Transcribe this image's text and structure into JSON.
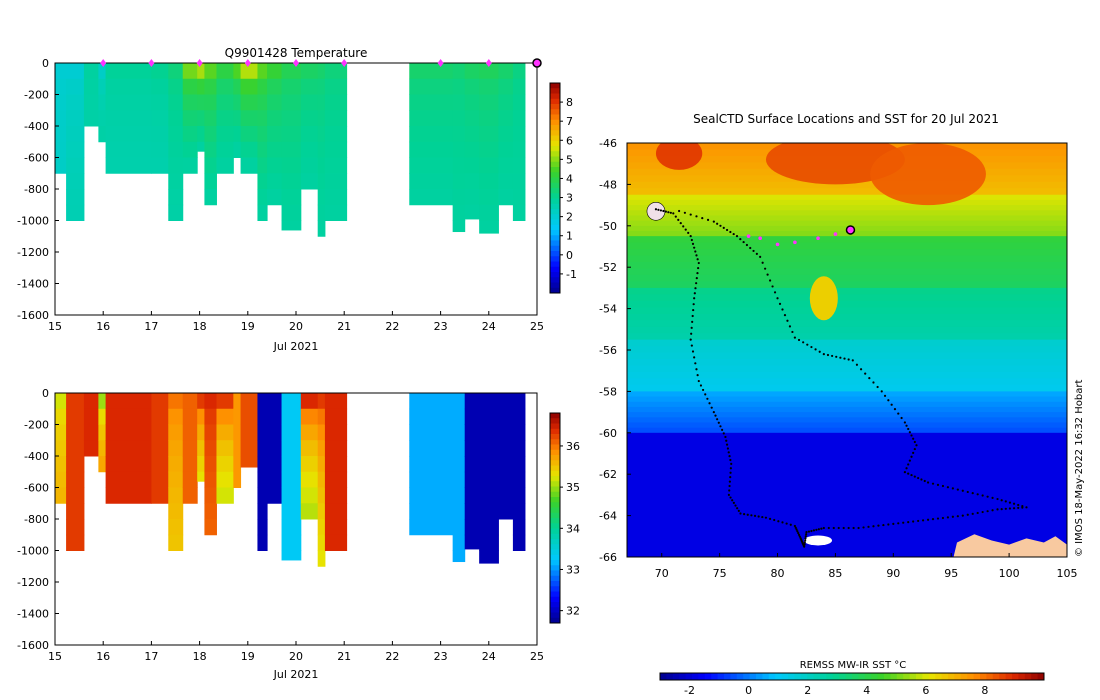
{
  "chart_data": [
    {
      "type": "heatmap",
      "title": "Q9901428  Temperature",
      "xlabel": "Jul 2021",
      "ylabel": "",
      "xlim": [
        15,
        25
      ],
      "ylim": [
        -1600,
        0
      ],
      "x_ticks": [
        "15",
        "16",
        "17",
        "18",
        "19",
        "20",
        "21",
        "22",
        "23",
        "24",
        "25"
      ],
      "y_ticks": [
        "0",
        "-200",
        "-400",
        "-600",
        "-800",
        "-1000",
        "-1200",
        "-1400",
        "-1600"
      ],
      "colorbar": {
        "min": -2,
        "max": 9,
        "ticks": [
          "8",
          "7",
          "6",
          "5",
          "4",
          "3",
          "2",
          "1",
          "0",
          "-1"
        ]
      },
      "profiles": [
        {
          "x": 15.0,
          "w": 0.23,
          "depth": 700,
          "top": 2.0,
          "bottom": 2.2
        },
        {
          "x": 15.23,
          "w": 0.37,
          "depth": 1000,
          "top": 2.0,
          "bottom": 2.5
        },
        {
          "x": 15.6,
          "w": 0.3,
          "depth": 430,
          "top": 2.8,
          "bottom": 2.7
        },
        {
          "x": 15.9,
          "w": 0.15,
          "depth": 500,
          "top": 2.2,
          "bottom": 2.7
        },
        {
          "x": 16.05,
          "w": 0.95,
          "depth": 700,
          "top": 2.9,
          "bottom": 2.6
        },
        {
          "x": 17.0,
          "w": 0.35,
          "depth": 700,
          "top": 3.0,
          "bottom": 2.6
        },
        {
          "x": 17.35,
          "w": 0.3,
          "depth": 1000,
          "top": 3.3,
          "bottom": 2.7
        },
        {
          "x": 17.65,
          "w": 0.3,
          "depth": 700,
          "top": 4.8,
          "bottom": 2.8
        },
        {
          "x": 17.95,
          "w": 0.15,
          "depth": 560,
          "top": 5.2,
          "bottom": 2.8
        },
        {
          "x": 18.1,
          "w": 0.25,
          "depth": 920,
          "top": 4.6,
          "bottom": 2.8
        },
        {
          "x": 18.35,
          "w": 0.35,
          "depth": 700,
          "top": 4.0,
          "bottom": 2.8
        },
        {
          "x": 18.7,
          "w": 0.15,
          "depth": 620,
          "top": 4.5,
          "bottom": 2.8
        },
        {
          "x": 18.85,
          "w": 0.35,
          "depth": 700,
          "top": 5.3,
          "bottom": 2.8
        },
        {
          "x": 19.2,
          "w": 0.2,
          "depth": 1000,
          "top": 4.6,
          "bottom": 2.8
        },
        {
          "x": 19.4,
          "w": 0.3,
          "depth": 910,
          "top": 4.2,
          "bottom": 2.8
        },
        {
          "x": 19.7,
          "w": 0.4,
          "depth": 1060,
          "top": 3.8,
          "bottom": 2.8
        },
        {
          "x": 20.1,
          "w": 0.35,
          "depth": 820,
          "top": 3.6,
          "bottom": 2.8
        },
        {
          "x": 20.45,
          "w": 0.15,
          "depth": 1110,
          "top": 3.5,
          "bottom": 2.8
        },
        {
          "x": 20.6,
          "w": 0.45,
          "depth": 1000,
          "top": 3.3,
          "bottom": 2.8
        },
        {
          "x": 22.35,
          "w": 0.9,
          "depth": 940,
          "top": 3.5,
          "bottom": 2.8
        },
        {
          "x": 23.25,
          "w": 0.25,
          "depth": 1070,
          "top": 3.4,
          "bottom": 2.8
        },
        {
          "x": 23.5,
          "w": 0.3,
          "depth": 990,
          "top": 3.6,
          "bottom": 2.8
        },
        {
          "x": 23.8,
          "w": 0.4,
          "depth": 1080,
          "top": 3.7,
          "bottom": 2.8
        },
        {
          "x": 24.2,
          "w": 0.3,
          "depth": 940,
          "top": 3.5,
          "bottom": 2.8
        },
        {
          "x": 24.5,
          "w": 0.25,
          "depth": 1000,
          "top": 3.2,
          "bottom": 2.8
        }
      ],
      "markers_x": [
        16,
        17,
        18,
        19,
        20,
        21,
        23,
        24
      ],
      "marker_color": "#ff33ff",
      "current_marker_x": 25
    },
    {
      "type": "heatmap",
      "title": "",
      "xlabel": "Jul 2021",
      "ylabel": "",
      "xlim": [
        15,
        25
      ],
      "ylim": [
        -1600,
        0
      ],
      "x_ticks": [
        "15",
        "16",
        "17",
        "18",
        "19",
        "20",
        "21",
        "22",
        "23",
        "24",
        "25"
      ],
      "y_ticks": [
        "0",
        "-200",
        "-400",
        "-600",
        "-800",
        "-1000",
        "-1200",
        "-1400",
        "-1600"
      ],
      "colorbar": {
        "min": 31.7,
        "max": 36.8,
        "ticks": [
          "36",
          "35",
          "34",
          "33",
          "32"
        ]
      },
      "profiles": [
        {
          "x": 15.0,
          "w": 0.23,
          "depth": 700,
          "top": 35.2,
          "bottom": 35.6
        },
        {
          "x": 15.23,
          "w": 0.37,
          "depth": 1000,
          "top": 36.3,
          "bottom": 36.3
        },
        {
          "x": 15.6,
          "w": 0.3,
          "depth": 430,
          "top": 36.4,
          "bottom": 36.4
        },
        {
          "x": 15.9,
          "w": 0.15,
          "depth": 500,
          "top": 35.0,
          "bottom": 35.7
        },
        {
          "x": 16.05,
          "w": 0.95,
          "depth": 700,
          "top": 36.4,
          "bottom": 36.4
        },
        {
          "x": 17.0,
          "w": 0.35,
          "depth": 700,
          "top": 36.3,
          "bottom": 36.3
        },
        {
          "x": 17.35,
          "w": 0.3,
          "depth": 1000,
          "top": 36.0,
          "bottom": 35.5
        },
        {
          "x": 17.65,
          "w": 0.3,
          "depth": 700,
          "top": 36.1,
          "bottom": 36.1
        },
        {
          "x": 17.95,
          "w": 0.15,
          "depth": 560,
          "top": 36.3,
          "bottom": 35.3
        },
        {
          "x": 18.1,
          "w": 0.25,
          "depth": 920,
          "top": 36.4,
          "bottom": 36.1
        },
        {
          "x": 18.35,
          "w": 0.35,
          "depth": 700,
          "top": 36.3,
          "bottom": 35.2
        },
        {
          "x": 18.7,
          "w": 0.15,
          "depth": 620,
          "top": 35.8,
          "bottom": 35.8
        },
        {
          "x": 18.85,
          "w": 0.35,
          "depth": 470,
          "top": 36.2,
          "bottom": 36.2
        },
        {
          "x": 19.2,
          "w": 0.2,
          "depth": 1000,
          "top": 31.9,
          "bottom": 31.9
        },
        {
          "x": 19.4,
          "w": 0.3,
          "depth": 700,
          "top": 31.9,
          "bottom": 31.9
        },
        {
          "x": 19.7,
          "w": 0.4,
          "depth": 1060,
          "top": 33.3,
          "bottom": 33.3
        },
        {
          "x": 20.1,
          "w": 0.35,
          "depth": 820,
          "top": 36.4,
          "bottom": 35.1
        },
        {
          "x": 20.45,
          "w": 0.15,
          "depth": 1110,
          "top": 36.3,
          "bottom": 35.3
        },
        {
          "x": 20.6,
          "w": 0.45,
          "depth": 1000,
          "top": 36.4,
          "bottom": 36.4
        },
        {
          "x": 22.35,
          "w": 0.9,
          "depth": 940,
          "top": 33.1,
          "bottom": 33.1
        },
        {
          "x": 23.25,
          "w": 0.25,
          "depth": 1070,
          "top": 33.1,
          "bottom": 33.1
        },
        {
          "x": 23.5,
          "w": 0.3,
          "depth": 990,
          "top": 31.9,
          "bottom": 31.9
        },
        {
          "x": 23.8,
          "w": 0.4,
          "depth": 1080,
          "top": 31.9,
          "bottom": 31.9
        },
        {
          "x": 24.2,
          "w": 0.3,
          "depth": 820,
          "top": 31.9,
          "bottom": 31.9
        },
        {
          "x": 24.5,
          "w": 0.25,
          "depth": 1000,
          "top": 31.9,
          "bottom": 31.9
        }
      ]
    },
    {
      "type": "heatmap",
      "title": "SealCTD Surface Locations and SST for 20 Jul 2021",
      "xlabel": "",
      "ylabel": "",
      "xlim": [
        67,
        105
      ],
      "ylim": [
        -66,
        -46
      ],
      "x_ticks": [
        "70",
        "75",
        "80",
        "85",
        "90",
        "95",
        "100",
        "105"
      ],
      "y_ticks": [
        "-46",
        "-48",
        "-50",
        "-52",
        "-54",
        "-56",
        "-58",
        "-60",
        "-62",
        "-64",
        "-66"
      ],
      "colorbar": {
        "label": "REMSS MW-IR SST °C",
        "min": -3,
        "max": 10,
        "ticks": [
          "-2",
          "0",
          "2",
          "4",
          "6",
          "8"
        ]
      },
      "credit": "© IMOS 18-May-2022 16:32 Hobart",
      "sst_bands": [
        {
          "lat_from": -46,
          "lat_to": -48.5,
          "value": 7.5
        },
        {
          "lat_from": -48.5,
          "lat_to": -50.5,
          "value": 6.0
        },
        {
          "lat_from": -50.5,
          "lat_to": -53,
          "value": 4.2
        },
        {
          "lat_from": -53,
          "lat_to": -55.5,
          "value": 3.0
        },
        {
          "lat_from": -55.5,
          "lat_to": -58,
          "value": 1.8
        },
        {
          "lat_from": -58,
          "lat_to": -60,
          "value": 0.5
        },
        {
          "lat_from": -60,
          "lat_to": -66,
          "value": -1.8
        }
      ],
      "track": [
        [
          69.5,
          -49.2
        ],
        [
          71,
          -49.4
        ],
        [
          72.5,
          -50.5
        ],
        [
          73.2,
          -51.8
        ],
        [
          72.8,
          -53.5
        ],
        [
          72.5,
          -55.5
        ],
        [
          73.2,
          -57.5
        ],
        [
          74.5,
          -59
        ],
        [
          75.5,
          -60.2
        ],
        [
          76,
          -61.5
        ],
        [
          75.8,
          -63
        ],
        [
          76.8,
          -63.9
        ],
        [
          79,
          -64.1
        ],
        [
          81.5,
          -64.5
        ],
        [
          82,
          -65.1
        ],
        [
          82.3,
          -65.5
        ],
        [
          82.5,
          -64.8
        ],
        [
          84,
          -64.6
        ],
        [
          87,
          -64.6
        ],
        [
          90,
          -64.4
        ],
        [
          93,
          -64.2
        ],
        [
          96,
          -64
        ],
        [
          99,
          -63.7
        ],
        [
          101.5,
          -63.6
        ],
        [
          99,
          -63.2
        ],
        [
          96,
          -62.8
        ],
        [
          93,
          -62.4
        ],
        [
          91,
          -61.9
        ],
        [
          92,
          -60.6
        ],
        [
          91,
          -59.5
        ],
        [
          89,
          -58
        ],
        [
          86.5,
          -56.5
        ],
        [
          84,
          -56.2
        ],
        [
          81.5,
          -55.4
        ],
        [
          80,
          -53.5
        ],
        [
          78.5,
          -51.5
        ],
        [
          76.5,
          -50.5
        ],
        [
          74.5,
          -49.8
        ],
        [
          71,
          -49.2
        ]
      ],
      "recent_positions": [
        [
          77.5,
          -50.5
        ],
        [
          78.5,
          -50.6
        ],
        [
          80,
          -50.9
        ],
        [
          81.5,
          -50.8
        ],
        [
          83.5,
          -50.6
        ],
        [
          85,
          -50.4
        ]
      ],
      "current_position": [
        86.3,
        -50.2
      ],
      "track_color": "#000000",
      "recent_color": "#ff33ff"
    }
  ]
}
